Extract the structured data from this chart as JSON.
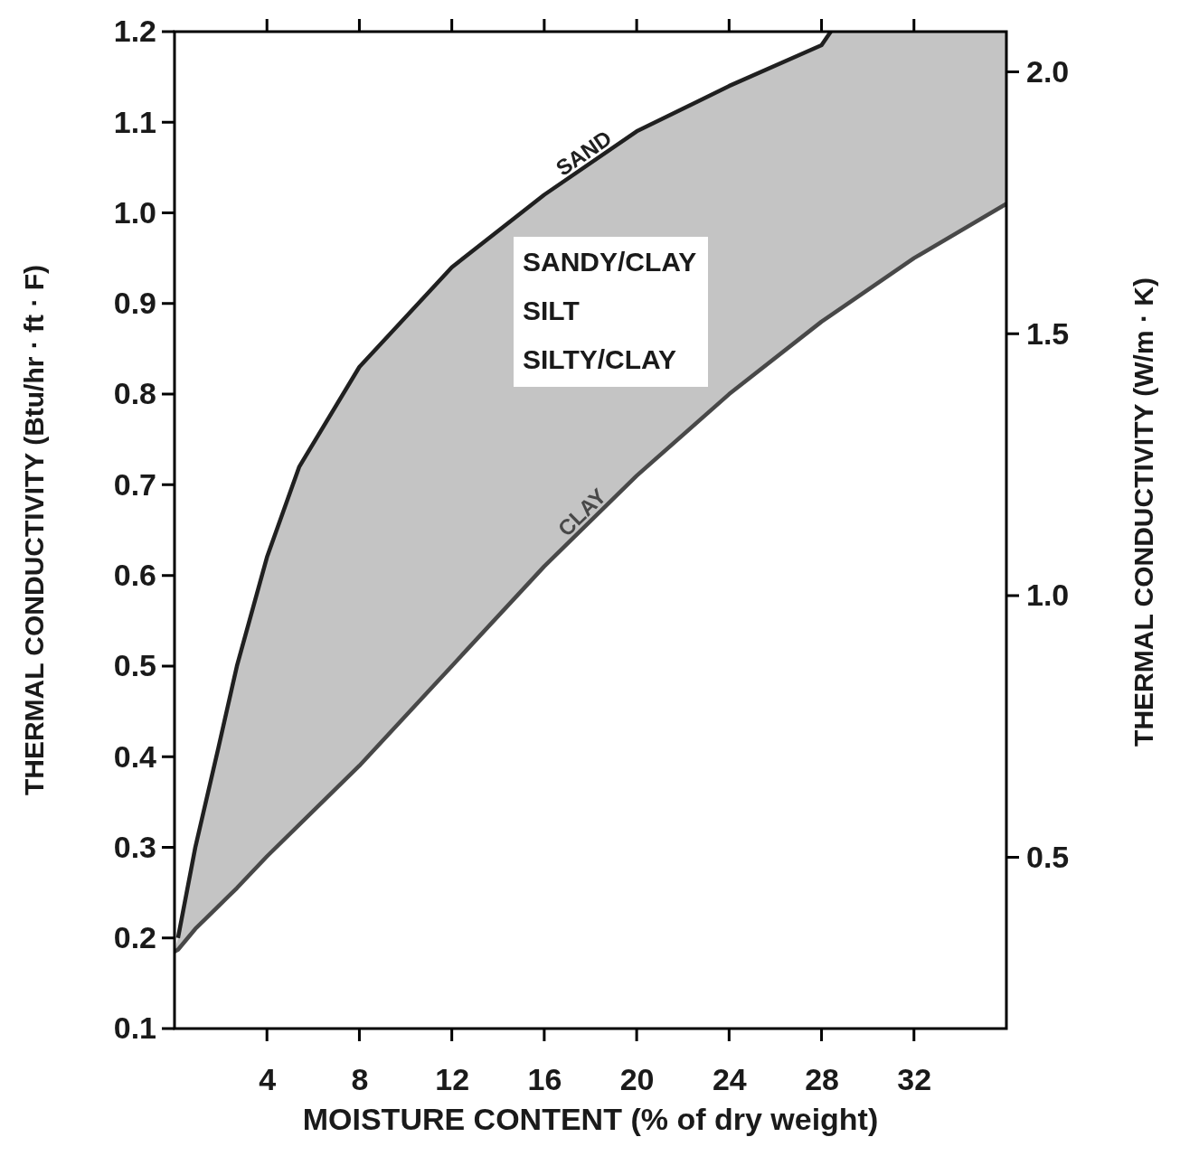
{
  "chart_data": {
    "type": "line",
    "xlabel": "MOISTURE CONTENT (% of dry weight)",
    "ylabel": "THERMAL CONDUCTIVITY (Btu/hr · ft · F)",
    "y2label": "THERMAL CONDUCTIVITY (W/m · K)",
    "xlim": [
      0,
      36
    ],
    "xticks": [
      4,
      8,
      12,
      16,
      20,
      24,
      28,
      32
    ],
    "ylim": [
      0.1,
      1.2
    ],
    "yticks": [
      0.1,
      0.2,
      0.3,
      0.4,
      0.5,
      0.6,
      0.7,
      0.8,
      0.9,
      {
        "value": 1,
        "label": "1.0"
      },
      1.1,
      1.2
    ],
    "y2lim": [
      0.173,
      2.077
    ],
    "y2ticks": [
      0.5,
      {
        "value": 1,
        "label": "1.0"
      },
      1.5,
      {
        "value": 2,
        "label": "2.0"
      }
    ],
    "grid": false,
    "legend": false,
    "series": [
      {
        "name": "SAND",
        "color": "#202020",
        "x": [
          0.15,
          0.9,
          1.9,
          2.7,
          4,
          5.4,
          8,
          12,
          16,
          20,
          24,
          28,
          28.4
        ],
        "values": [
          0.2,
          0.3,
          0.41,
          0.5,
          0.62,
          0.72,
          0.83,
          0.94,
          1.02,
          1.09,
          1.14,
          1.185,
          1.2
        ]
      },
      {
        "name": "CLAY",
        "color": "#484848",
        "x": [
          0,
          0.15,
          0.9,
          1.9,
          2.7,
          4,
          5.4,
          8,
          12,
          16,
          20,
          24,
          28,
          28.4,
          32,
          36
        ],
        "values": [
          0.185,
          0.187,
          0.21,
          0.235,
          0.255,
          0.29,
          0.325,
          0.39,
          0.5,
          0.61,
          0.71,
          0.8,
          0.88,
          0.887,
          0.95,
          1.01
        ],
        "lower": [
          0.185,
          0.187,
          0.21,
          0.235,
          0.255,
          0.29,
          0.325,
          0.39,
          0.5,
          0.61,
          0.71,
          0.8,
          0.88,
          0.887,
          0.95,
          1.01
        ],
        "upper": [
          0.185,
          0.2,
          0.3,
          0.41,
          0.5,
          0.62,
          0.72,
          0.83,
          0.94,
          1.02,
          1.09,
          1.14,
          1.185,
          1.2,
          1.2,
          1.2
        ]
      }
    ],
    "annotations": [
      "SANDY/CLAY",
      "SILT",
      "SILTY/CLAY"
    ]
  }
}
